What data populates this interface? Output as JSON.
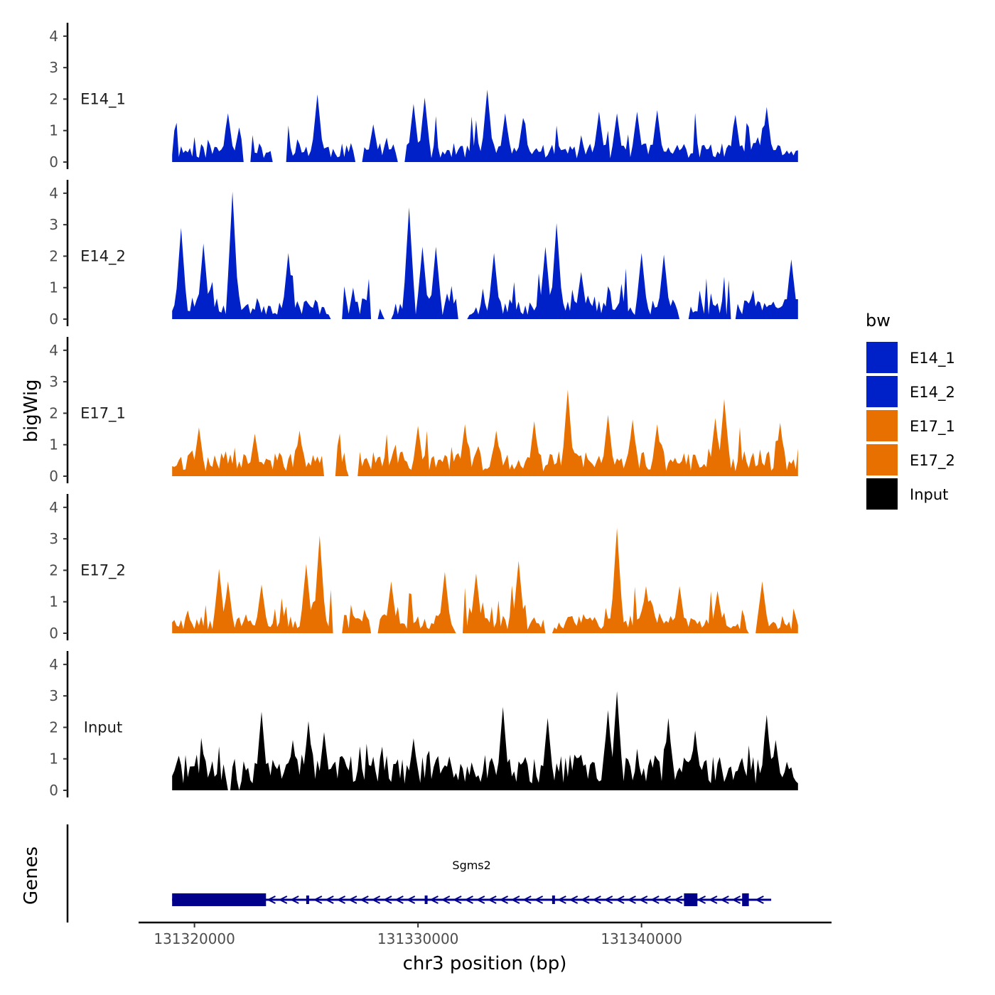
{
  "chart_data": {
    "type": "area",
    "chromosome": "chr3",
    "xlabel": "chr3 position (bp)",
    "ylabel": "bigWig",
    "genes_label": "Genes",
    "xlim": [
      131317500,
      131348500
    ],
    "x_ticks": [
      131320000,
      131330000,
      131340000
    ],
    "x_tick_labels": [
      "131320000",
      "131330000",
      "131340000"
    ],
    "ylim": [
      0,
      4.2
    ],
    "y_ticks": [
      0,
      1,
      2,
      3,
      4
    ],
    "y_tick_labels": [
      "0",
      "1",
      "2",
      "3",
      "4"
    ],
    "legend": {
      "title": "bw",
      "entries": [
        {
          "label": "E14_1",
          "color": "#0020c8"
        },
        {
          "label": "E14_2",
          "color": "#0020c8"
        },
        {
          "label": "E17_1",
          "color": "#e87000"
        },
        {
          "label": "E17_2",
          "color": "#e87000"
        },
        {
          "label": "Input",
          "color": "#000000"
        }
      ]
    },
    "x_start": 131319000,
    "x_end": 131347000,
    "series": [
      {
        "name": "E14_1",
        "color": "#0020c8",
        "seed": 11,
        "base": 0.45,
        "gaps": [
          [
            131322200,
            131322500
          ],
          [
            131323500,
            131324100
          ],
          [
            131327200,
            131327500
          ],
          [
            131329100,
            131329400
          ]
        ],
        "peaks": [
          [
            131321500,
            1.55
          ],
          [
            131322000,
            1.1
          ],
          [
            131325500,
            2.15
          ],
          [
            131328000,
            1.2
          ],
          [
            131329800,
            1.85
          ],
          [
            131330300,
            2.05
          ],
          [
            131333100,
            2.3
          ],
          [
            131333900,
            1.55
          ],
          [
            131334700,
            1.4
          ],
          [
            131338100,
            1.6
          ],
          [
            131338900,
            1.55
          ],
          [
            131339800,
            1.6
          ],
          [
            131340700,
            1.65
          ],
          [
            131344200,
            1.5
          ],
          [
            131345600,
            1.75
          ]
        ]
      },
      {
        "name": "E14_2",
        "color": "#0020c8",
        "seed": 23,
        "base": 0.5,
        "gaps": [
          [
            131326100,
            131326600
          ],
          [
            131327900,
            131328200
          ],
          [
            131328500,
            131328800
          ],
          [
            131331800,
            131332200
          ],
          [
            131341700,
            131342100
          ],
          [
            131344000,
            131344200
          ]
        ],
        "peaks": [
          [
            131319400,
            2.9
          ],
          [
            131320400,
            2.4
          ],
          [
            131321700,
            4.05
          ],
          [
            131324200,
            2.1
          ],
          [
            131329600,
            3.55
          ],
          [
            131330200,
            2.3
          ],
          [
            131330800,
            2.3
          ],
          [
            131333400,
            2.1
          ],
          [
            131335700,
            2.3
          ],
          [
            131336200,
            3.05
          ],
          [
            131337300,
            1.5
          ],
          [
            131340000,
            2.1
          ],
          [
            131341000,
            2.05
          ],
          [
            131346700,
            1.9
          ]
        ]
      },
      {
        "name": "E17_1",
        "color": "#e87000",
        "seed": 37,
        "base": 0.6,
        "gaps": [
          [
            131325800,
            131326300
          ],
          [
            131326900,
            131327300
          ]
        ],
        "peaks": [
          [
            131320200,
            1.55
          ],
          [
            131322700,
            1.35
          ],
          [
            131324700,
            1.45
          ],
          [
            131330000,
            1.6
          ],
          [
            131332100,
            1.65
          ],
          [
            131333500,
            1.45
          ],
          [
            131335200,
            1.75
          ],
          [
            131336700,
            2.75
          ],
          [
            131338500,
            1.95
          ],
          [
            131339600,
            1.8
          ],
          [
            131340700,
            1.65
          ],
          [
            131343300,
            1.85
          ],
          [
            131343700,
            2.45
          ],
          [
            131346200,
            1.7
          ]
        ]
      },
      {
        "name": "E17_2",
        "color": "#e87000",
        "seed": 53,
        "base": 0.45,
        "gaps": [
          [
            131326200,
            131326600
          ],
          [
            131327900,
            131328200
          ],
          [
            131331700,
            131332000
          ],
          [
            131335700,
            131336000
          ],
          [
            131344800,
            131345100
          ]
        ],
        "peaks": [
          [
            131321100,
            2.05
          ],
          [
            131321500,
            1.65
          ],
          [
            131323000,
            1.55
          ],
          [
            131325000,
            2.2
          ],
          [
            131325600,
            3.1
          ],
          [
            131328800,
            1.65
          ],
          [
            131331200,
            1.95
          ],
          [
            131332600,
            1.9
          ],
          [
            131334500,
            2.3
          ],
          [
            131338900,
            3.35
          ],
          [
            131340200,
            1.5
          ],
          [
            131341700,
            1.5
          ],
          [
            131343400,
            1.35
          ],
          [
            131345400,
            1.65
          ]
        ]
      },
      {
        "name": "Input",
        "color": "#000000",
        "seed": 71,
        "base": 0.85,
        "gaps": [
          [
            131321500,
            131321650
          ],
          [
            131321950,
            131322050
          ]
        ],
        "peaks": [
          [
            131323000,
            2.5
          ],
          [
            131324400,
            1.6
          ],
          [
            131325100,
            2.2
          ],
          [
            131325800,
            1.85
          ],
          [
            131329800,
            1.65
          ],
          [
            131333800,
            2.65
          ],
          [
            131335800,
            2.3
          ],
          [
            131338500,
            2.55
          ],
          [
            131338900,
            3.15
          ],
          [
            131341200,
            2.3
          ],
          [
            131342400,
            1.9
          ],
          [
            131345600,
            2.4
          ],
          [
            131346000,
            1.6
          ]
        ]
      }
    ],
    "genes": [
      {
        "name": "Sgms2",
        "strand": "-",
        "start": 131319000,
        "end": 131345800,
        "exons": [
          [
            131319000,
            131323200,
            "thick"
          ],
          [
            131325000,
            131325100,
            "thin"
          ],
          [
            131330300,
            131330400,
            "thin"
          ],
          [
            131336000,
            131336100,
            "thin"
          ],
          [
            131341900,
            131342500,
            "thick"
          ],
          [
            131344500,
            131344800,
            "thick"
          ]
        ]
      }
    ]
  }
}
